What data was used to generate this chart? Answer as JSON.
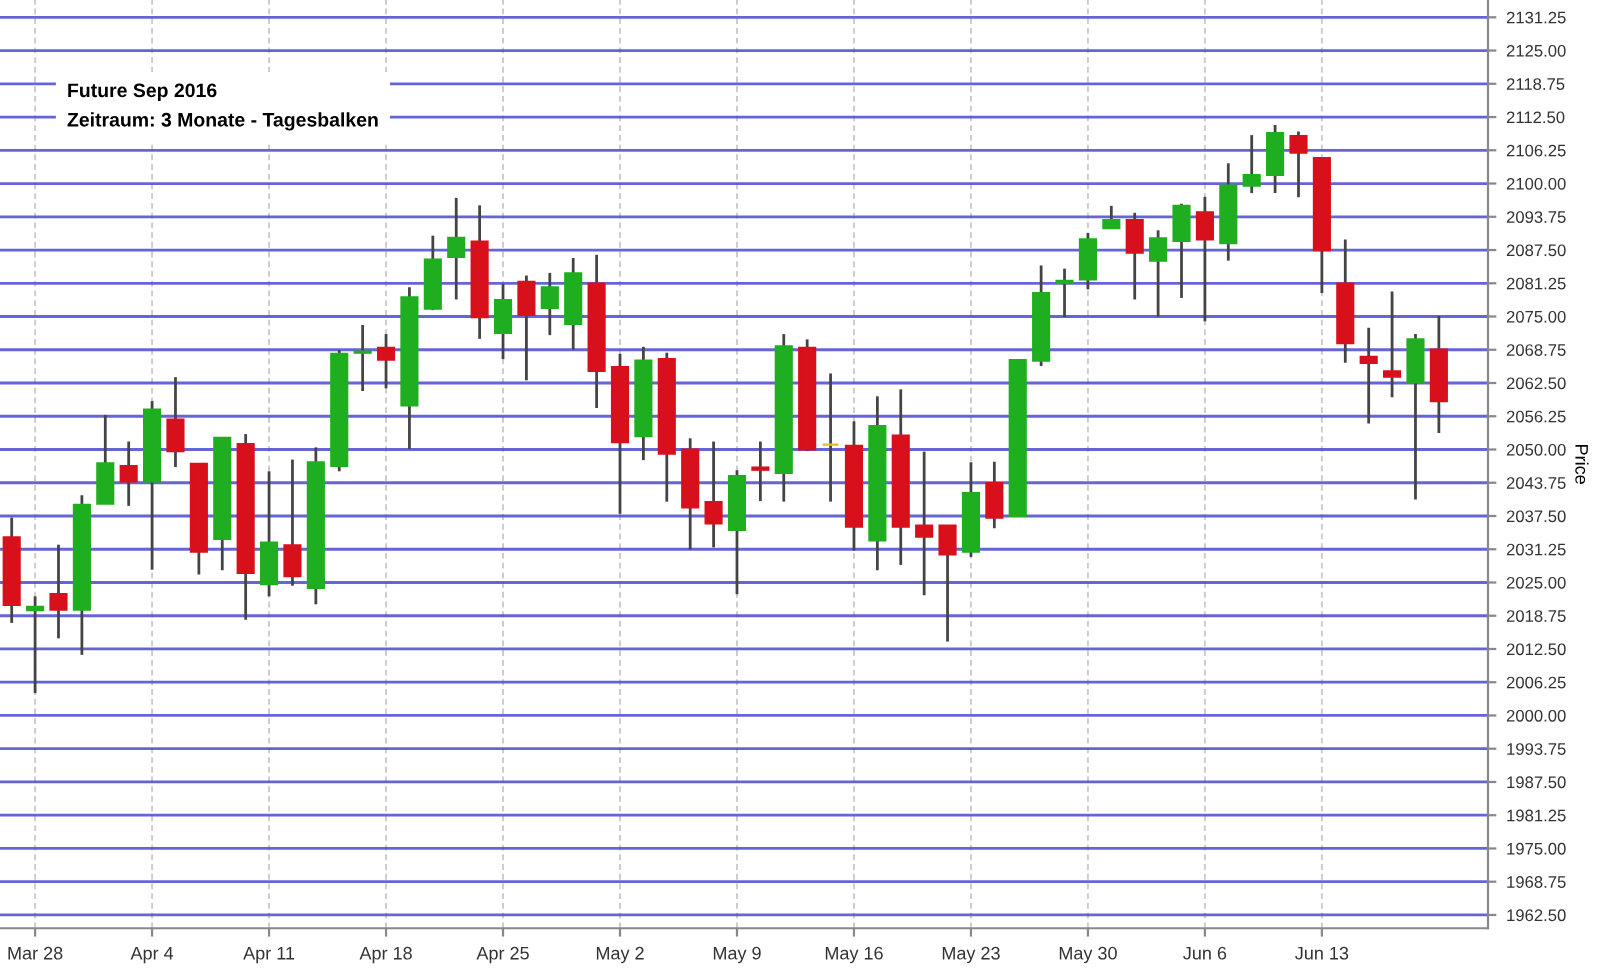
{
  "chart_data": {
    "type": "candlestick",
    "title": "Future Sep 2016",
    "subtitle": "Zeitraum: 3 Monate - Tagesbalken",
    "ylabel": "Price",
    "categories": [
      null,
      "Mar 28",
      null,
      null,
      null,
      null,
      "Apr 4",
      null,
      null,
      null,
      null,
      "Apr 11",
      null,
      null,
      null,
      null,
      "Apr 18",
      null,
      null,
      null,
      null,
      "Apr 25",
      null,
      null,
      null,
      null,
      "May 2",
      null,
      null,
      null,
      null,
      "May 9",
      null,
      null,
      null,
      null,
      "May 16",
      null,
      null,
      null,
      null,
      "May 23",
      null,
      null,
      null,
      null,
      "May 30",
      null,
      null,
      null,
      null,
      "Jun 6",
      null,
      null,
      null,
      null,
      "Jun 13",
      null,
      null,
      null,
      null,
      null
    ],
    "ohlc": [
      [
        2033.5,
        2037.2,
        2017.4,
        2020.8
      ],
      [
        2019.8,
        2022.4,
        2004.2,
        2020.4
      ],
      [
        2022.8,
        2032.1,
        2014.5,
        2019.9
      ],
      [
        2019.9,
        2041.4,
        2011.4,
        2039.6
      ],
      [
        2039.8,
        2056.5,
        2039.8,
        2047.4
      ],
      [
        2046.9,
        2051.5,
        2039.4,
        2044.0
      ],
      [
        2044.0,
        2059.1,
        2027.4,
        2057.5
      ],
      [
        2055.6,
        2063.6,
        2046.7,
        2049.7
      ],
      [
        2047.3,
        2047.3,
        2026.5,
        2030.8
      ],
      [
        2033.2,
        2052.2,
        2027.3,
        2052.2
      ],
      [
        2051.0,
        2052.9,
        2018.0,
        2026.8
      ],
      [
        2024.7,
        2045.9,
        2022.4,
        2032.5
      ],
      [
        2032.0,
        2048.1,
        2024.4,
        2026.2
      ],
      [
        2024.0,
        2050.4,
        2020.9,
        2047.6
      ],
      [
        2046.9,
        2068.7,
        2045.9,
        2068.0
      ],
      [
        2068.2,
        2073.4,
        2061.0,
        2068.4
      ],
      [
        2069.1,
        2071.7,
        2061.5,
        2066.9
      ],
      [
        2058.3,
        2080.5,
        2050.1,
        2078.6
      ],
      [
        2076.5,
        2090.2,
        2076.2,
        2085.7
      ],
      [
        2086.2,
        2097.3,
        2078.2,
        2089.8
      ],
      [
        2089.1,
        2095.9,
        2070.8,
        2074.9
      ],
      [
        2071.9,
        2081.1,
        2067.0,
        2078.1
      ],
      [
        2081.5,
        2082.7,
        2063.0,
        2075.3
      ],
      [
        2076.6,
        2083.2,
        2071.5,
        2080.5
      ],
      [
        2073.6,
        2086.0,
        2068.8,
        2083.1
      ],
      [
        2081.2,
        2086.6,
        2057.8,
        2064.8
      ],
      [
        2065.5,
        2068.0,
        2037.9,
        2051.4
      ],
      [
        2052.5,
        2069.3,
        2048.0,
        2066.7
      ],
      [
        2067.0,
        2068.2,
        2040.2,
        2049.2
      ],
      [
        2050.0,
        2052.1,
        2031.2,
        2039.1
      ],
      [
        2040.1,
        2051.5,
        2031.6,
        2036.1
      ],
      [
        2034.9,
        2046.1,
        2022.8,
        2045.0
      ],
      [
        2046.6,
        2051.5,
        2040.3,
        2046.2
      ],
      [
        2045.6,
        2071.7,
        2040.2,
        2069.4
      ],
      [
        2069.1,
        2070.7,
        2049.7,
        2050.0
      ],
      [
        2050.9,
        2064.3,
        2040.2,
        2050.9
      ],
      [
        2050.7,
        2055.3,
        2031.0,
        2035.5
      ],
      [
        2032.9,
        2060.0,
        2027.3,
        2054.4
      ],
      [
        2052.6,
        2061.3,
        2028.3,
        2035.5
      ],
      [
        2035.7,
        2049.6,
        2022.6,
        2033.6
      ],
      [
        2035.7,
        2035.7,
        2013.9,
        2030.3
      ],
      [
        2030.8,
        2047.6,
        2029.8,
        2041.8
      ],
      [
        2043.7,
        2047.7,
        2035.2,
        2037.2
      ],
      [
        2037.5,
        2066.8,
        2037.5,
        2066.8
      ],
      [
        2066.7,
        2084.6,
        2065.7,
        2079.4
      ],
      [
        2081.3,
        2084.0,
        2074.9,
        2081.7
      ],
      [
        2082.0,
        2090.7,
        2080.1,
        2089.5
      ],
      [
        2091.6,
        2095.8,
        2091.6,
        2093.1
      ],
      [
        2093.1,
        2094.5,
        2078.2,
        2087.0
      ],
      [
        2085.5,
        2091.2,
        2075.0,
        2089.7
      ],
      [
        2089.2,
        2096.2,
        2078.5,
        2095.8
      ],
      [
        2094.6,
        2097.5,
        2074.1,
        2089.5
      ],
      [
        2088.8,
        2103.8,
        2085.5,
        2099.6
      ],
      [
        2099.6,
        2109.1,
        2098.2,
        2101.6
      ],
      [
        2101.6,
        2111.0,
        2098.2,
        2109.5
      ],
      [
        2108.9,
        2109.8,
        2097.4,
        2105.8
      ],
      [
        2104.8,
        2104.8,
        2079.4,
        2087.5
      ],
      [
        2081.2,
        2089.5,
        2066.3,
        2070.0
      ],
      [
        2067.4,
        2072.9,
        2054.9,
        2066.3
      ],
      [
        2064.7,
        2079.7,
        2059.8,
        2063.7
      ],
      [
        2062.6,
        2071.7,
        2040.6,
        2070.7
      ],
      [
        2068.8,
        2075.1,
        2053.1,
        2059.1
      ]
    ],
    "colors": [
      "#d8101c",
      "#1fae1f",
      "#d8101c",
      "#1fae1f",
      "#1fae1f",
      "#d8101c",
      "#1fae1f",
      "#d8101c",
      "#d8101c",
      "#1fae1f",
      "#d8101c",
      "#1fae1f",
      "#d8101c",
      "#1fae1f",
      "#1fae1f",
      "#1fae1f",
      "#d8101c",
      "#1fae1f",
      "#1fae1f",
      "#1fae1f",
      "#d8101c",
      "#1fae1f",
      "#d8101c",
      "#1fae1f",
      "#1fae1f",
      "#d8101c",
      "#d8101c",
      "#1fae1f",
      "#d8101c",
      "#d8101c",
      "#d8101c",
      "#1fae1f",
      "#d8101c",
      "#1fae1f",
      "#d8101c",
      "#e0c020",
      "#d8101c",
      "#1fae1f",
      "#d8101c",
      "#d8101c",
      "#d8101c",
      "#1fae1f",
      "#d8101c",
      "#1fae1f",
      "#1fae1f",
      "#1fae1f",
      "#1fae1f",
      "#1fae1f",
      "#d8101c",
      "#1fae1f",
      "#1fae1f",
      "#d8101c",
      "#1fae1f",
      "#1fae1f",
      "#1fae1f",
      "#d8101c",
      "#d8101c",
      "#d8101c",
      "#d8101c",
      "#d8101c",
      "#1fae1f",
      "#d8101c"
    ],
    "ylim": [
      1960,
      2134.5
    ],
    "yticks": [
      {
        "value": 1962.5,
        "label": "1962.50"
      },
      {
        "value": 1968.75,
        "label": "1968.75"
      },
      {
        "value": 1975,
        "label": "1975.00"
      },
      {
        "value": 1981.25,
        "label": "1981.25"
      },
      {
        "value": 1987.5,
        "label": "1987.50"
      },
      {
        "value": 1993.75,
        "label": "1993.75"
      },
      {
        "value": 2000,
        "label": "2000.00"
      },
      {
        "value": 2006.25,
        "label": "2006.25"
      },
      {
        "value": 2012.5,
        "label": "2012.50"
      },
      {
        "value": 2018.75,
        "label": "2018.75"
      },
      {
        "value": 2025,
        "label": "2025.00"
      },
      {
        "value": 2031.25,
        "label": "2031.25"
      },
      {
        "value": 2037.5,
        "label": "2037.50"
      },
      {
        "value": 2043.75,
        "label": "2043.75"
      },
      {
        "value": 2050,
        "label": "2050.00"
      },
      {
        "value": 2056.25,
        "label": "2056.25"
      },
      {
        "value": 2062.5,
        "label": "2062.50"
      },
      {
        "value": 2068.75,
        "label": "2068.75"
      },
      {
        "value": 2075,
        "label": "2075.00"
      },
      {
        "value": 2081.25,
        "label": "2081.25"
      },
      {
        "value": 2087.5,
        "label": "2087.50"
      },
      {
        "value": 2093.75,
        "label": "2093.75"
      },
      {
        "value": 2100,
        "label": "2100.00"
      },
      {
        "value": 2106.25,
        "label": "2106.25"
      },
      {
        "value": 2112.5,
        "label": "2112.50"
      },
      {
        "value": 2118.75,
        "label": "2118.75"
      },
      {
        "value": 2125,
        "label": "2125.00"
      },
      {
        "value": 2131.25,
        "label": "2131.25"
      }
    ],
    "grid": true,
    "legend": false
  }
}
